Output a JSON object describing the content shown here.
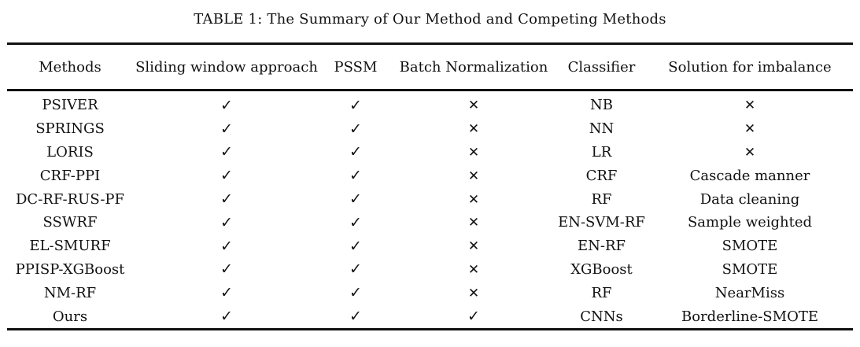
{
  "caption": "TABLE 1: The Summary of Our Method and Competing Methods",
  "icons": {
    "check": "✓",
    "cross": "✕"
  },
  "colors": {
    "text": "#111111",
    "rule": "#111111",
    "background": "#ffffff"
  },
  "table": {
    "columns": [
      {
        "key": "method",
        "label": "Methods"
      },
      {
        "key": "sliding_window",
        "label": "Sliding window approach"
      },
      {
        "key": "pssm",
        "label": "PSSM"
      },
      {
        "key": "batch_norm",
        "label": "Batch Normalization"
      },
      {
        "key": "classifier",
        "label": "Classifier"
      },
      {
        "key": "imbalance",
        "label": "Solution for imbalance"
      }
    ],
    "rows": [
      {
        "method": "PSIVER",
        "sliding_window": "check",
        "pssm": "check",
        "batch_norm": "cross",
        "classifier": "NB",
        "imbalance": "cross"
      },
      {
        "method": "SPRINGS",
        "sliding_window": "check",
        "pssm": "check",
        "batch_norm": "cross",
        "classifier": "NN",
        "imbalance": "cross"
      },
      {
        "method": "LORIS",
        "sliding_window": "check",
        "pssm": "check",
        "batch_norm": "cross",
        "classifier": "LR",
        "imbalance": "cross"
      },
      {
        "method": "CRF-PPI",
        "sliding_window": "check",
        "pssm": "check",
        "batch_norm": "cross",
        "classifier": "CRF",
        "imbalance": "Cascade manner"
      },
      {
        "method": "DC-RF-RUS-PF",
        "sliding_window": "check",
        "pssm": "check",
        "batch_norm": "cross",
        "classifier": "RF",
        "imbalance": "Data cleaning"
      },
      {
        "method": "SSWRF",
        "sliding_window": "check",
        "pssm": "check",
        "batch_norm": "cross",
        "classifier": "EN-SVM-RF",
        "imbalance": "Sample weighted"
      },
      {
        "method": "EL-SMURF",
        "sliding_window": "check",
        "pssm": "check",
        "batch_norm": "cross",
        "classifier": "EN-RF",
        "imbalance": "SMOTE"
      },
      {
        "method": "PPISP-XGBoost",
        "sliding_window": "check",
        "pssm": "check",
        "batch_norm": "cross",
        "classifier": "XGBoost",
        "imbalance": "SMOTE"
      },
      {
        "method": "NM-RF",
        "sliding_window": "check",
        "pssm": "check",
        "batch_norm": "cross",
        "classifier": "RF",
        "imbalance": "NearMiss"
      },
      {
        "method": "Ours",
        "sliding_window": "check",
        "pssm": "check",
        "batch_norm": "check",
        "classifier": "CNNs",
        "imbalance": "Borderline-SMOTE"
      }
    ]
  }
}
